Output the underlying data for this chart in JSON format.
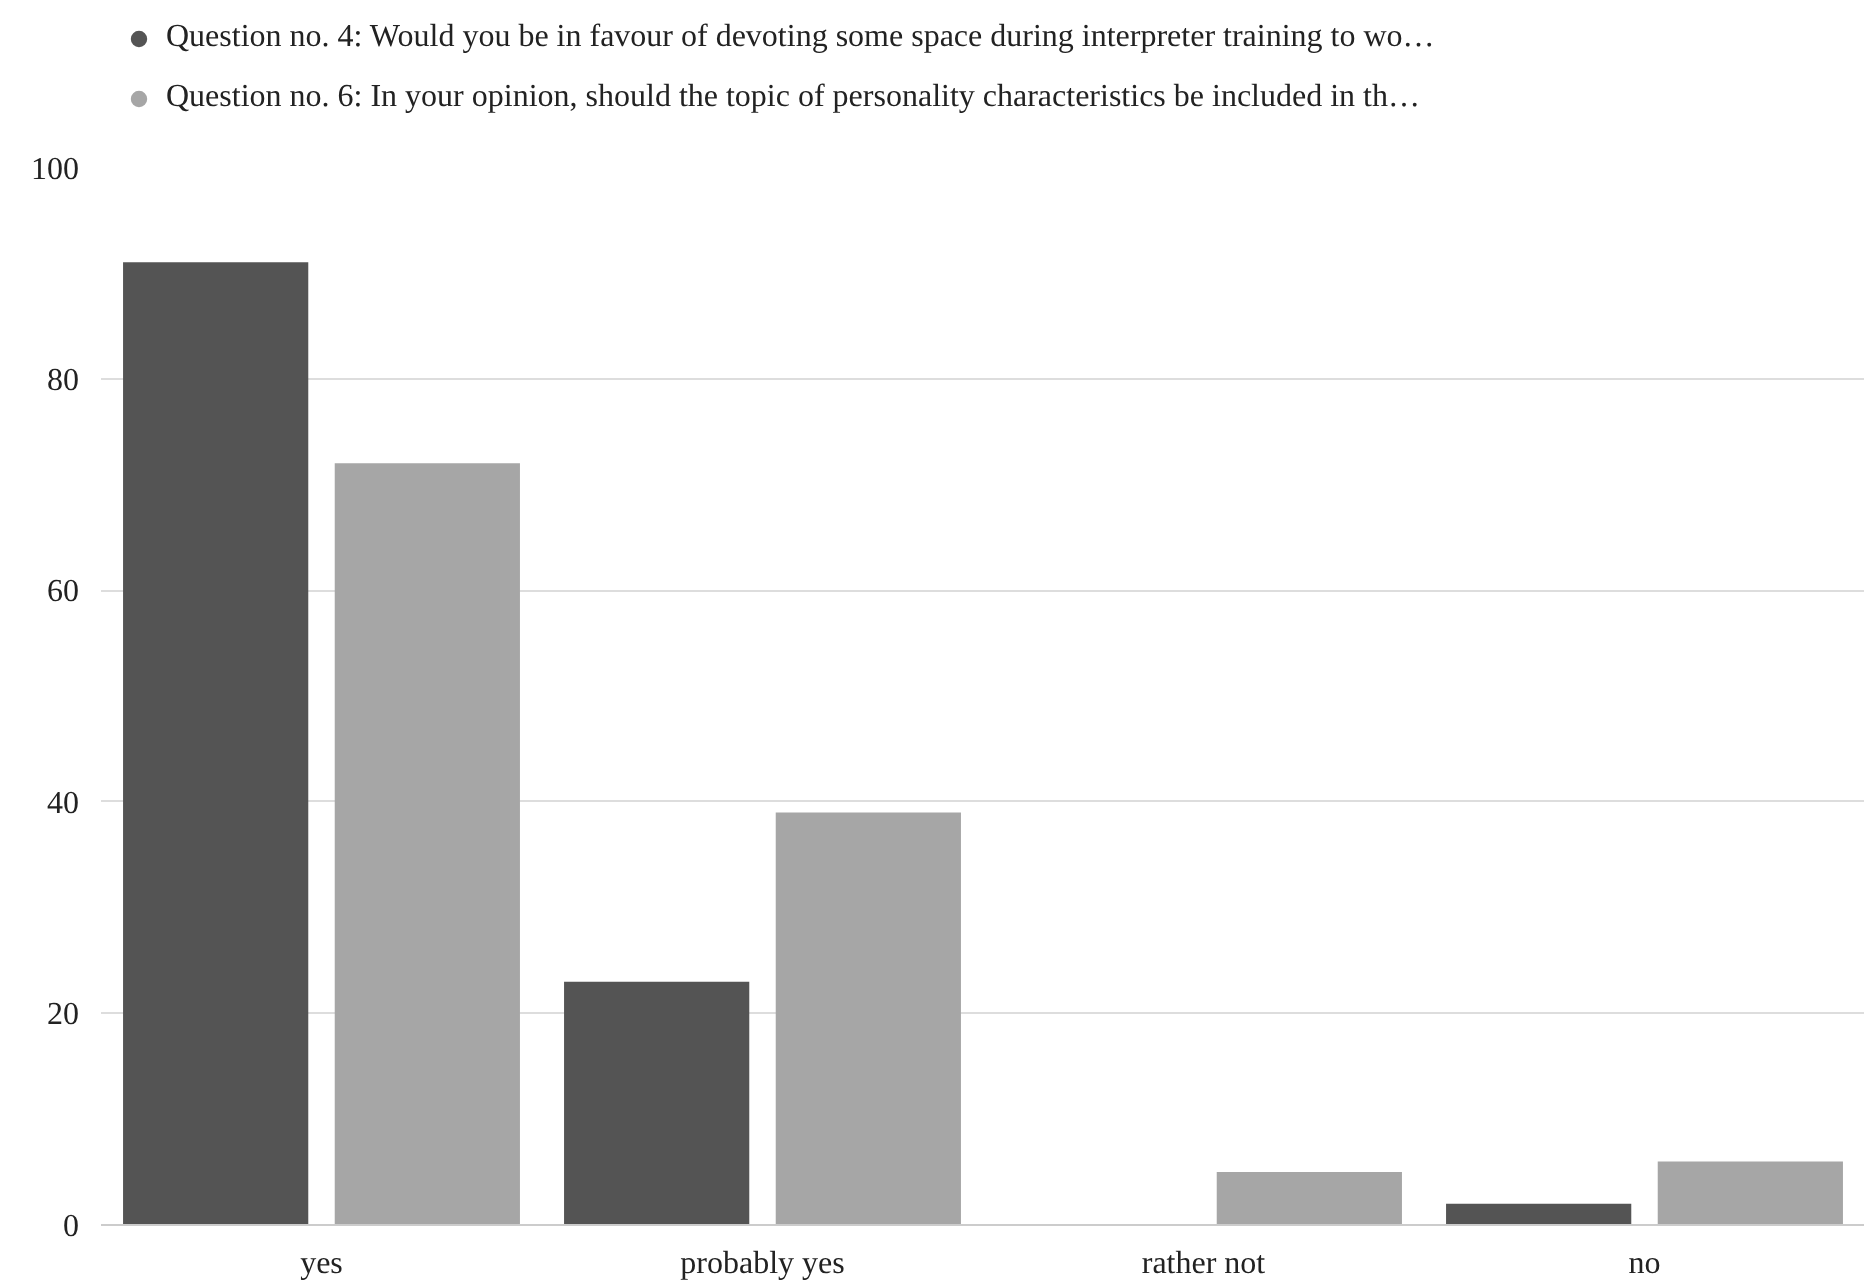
{
  "chart_data": {
    "type": "bar",
    "categories": [
      "yes",
      "probably yes",
      "rather not",
      "no"
    ],
    "series": [
      {
        "name": "Question no. 4: Would you be in favour of devoting some space during interpreter training to wo…",
        "color": "#545454",
        "values": [
          91,
          23,
          0,
          2
        ]
      },
      {
        "name": "Question no. 6: In your opinion, should the topic of personality characteristics be included in th…",
        "color": "#a6a6a6",
        "values": [
          72,
          39,
          5,
          6
        ]
      }
    ],
    "ylim": [
      0,
      100
    ],
    "yticks": [
      0,
      20,
      40,
      60,
      80,
      100
    ],
    "grid": "y",
    "legend": "top"
  }
}
